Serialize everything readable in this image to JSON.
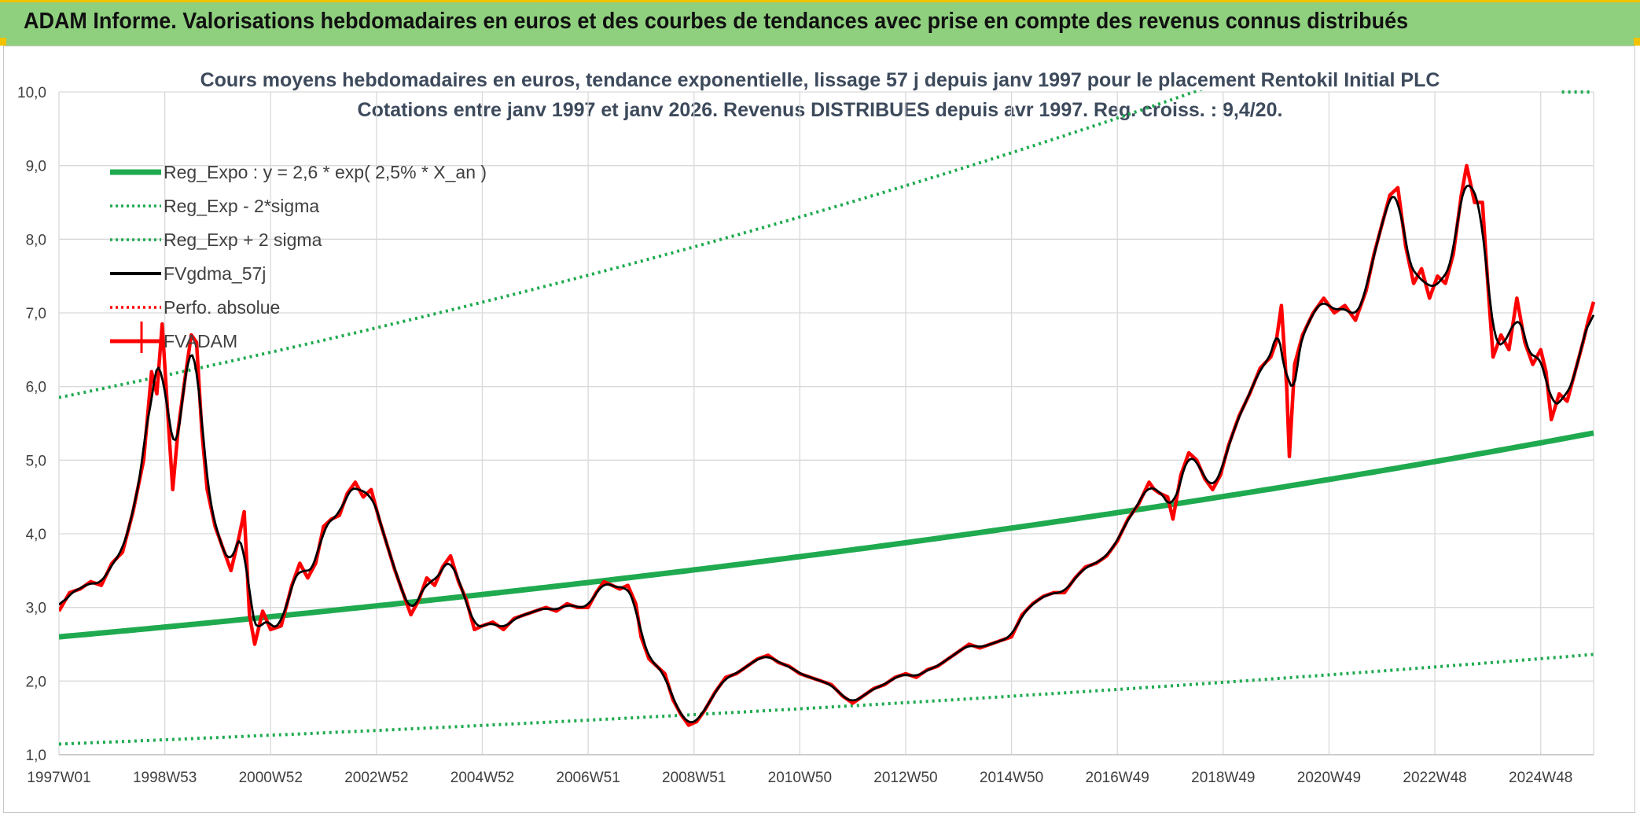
{
  "banner": {
    "title": "ADAM Informe. Valorisations hebdomadaires en euros et des courbes de tendances avec prise en compte des revenus connus distribués"
  },
  "chart_data": {
    "type": "line",
    "title": "Cours moyens hebdomadaires en euros, tendance exponentielle, lissage 57 j depuis janv 1997 pour le placement Rentokil Initial PLC",
    "subtitle": "Cotations entre janv 1997 et janv 2026. Revenus DISTRIBUES depuis avr 1997. Reg. croiss. : 9,4/20.",
    "xlabel": "",
    "ylabel": "",
    "ylim": [
      1.0,
      10.0
    ],
    "y_ticks": [
      "1,0",
      "2,0",
      "3,0",
      "4,0",
      "5,0",
      "6,0",
      "7,0",
      "8,0",
      "9,0",
      "10,0"
    ],
    "x_range": [
      1997.0,
      2026.0
    ],
    "x_ticks": [
      {
        "label": "1997W01",
        "year": 1997.0
      },
      {
        "label": "1998W53",
        "year": 1999.0
      },
      {
        "label": "2000W52",
        "year": 2001.0
      },
      {
        "label": "2002W52",
        "year": 2003.0
      },
      {
        "label": "2004W52",
        "year": 2005.0
      },
      {
        "label": "2006W51",
        "year": 2007.0
      },
      {
        "label": "2008W51",
        "year": 2009.0
      },
      {
        "label": "2010W50",
        "year": 2011.0
      },
      {
        "label": "2012W50",
        "year": 2013.0
      },
      {
        "label": "2014W50",
        "year": 2015.0
      },
      {
        "label": "2016W49",
        "year": 2017.0
      },
      {
        "label": "2018W49",
        "year": 2019.0
      },
      {
        "label": "2020W49",
        "year": 2021.0
      },
      {
        "label": "2022W48",
        "year": 2023.0
      },
      {
        "label": "2024W48",
        "year": 2025.0
      }
    ],
    "grid": true,
    "legend_position": "top-left",
    "regression": {
      "a": 2.6,
      "rate": 0.025,
      "base_year": 1997.0,
      "upper_factor": 2.25,
      "lower_factor": 0.44
    },
    "series": [
      {
        "name": "Reg_Expo : y = 2,6 * exp( 2,5% *  X_an )",
        "color": "#1faa50",
        "style": "solid-thick",
        "kind": "regression"
      },
      {
        "name": "Reg_Exp - 2*sigma",
        "color": "#1faa50",
        "style": "dotted",
        "kind": "lower"
      },
      {
        "name": "Reg_Exp + 2 sigma",
        "color": "#1faa50",
        "style": "dotted",
        "kind": "upper"
      },
      {
        "name": "FVgdma_57j",
        "color": "#000000",
        "style": "solid",
        "kind": "smooth"
      },
      {
        "name": "Perfo. absolue",
        "color": "#ff0000",
        "style": "dotted",
        "kind": "none"
      },
      {
        "name": "FVADAM",
        "color": "#ff0000",
        "style": "solid-thick",
        "kind": "price",
        "points": [
          [
            1997.0,
            2.95
          ],
          [
            1997.2,
            3.2
          ],
          [
            1997.4,
            3.25
          ],
          [
            1997.6,
            3.35
          ],
          [
            1997.8,
            3.3
          ],
          [
            1998.0,
            3.6
          ],
          [
            1998.2,
            3.75
          ],
          [
            1998.4,
            4.3
          ],
          [
            1998.6,
            5.0
          ],
          [
            1998.75,
            6.2
          ],
          [
            1998.85,
            5.9
          ],
          [
            1998.95,
            6.85
          ],
          [
            1999.05,
            5.7
          ],
          [
            1999.15,
            4.6
          ],
          [
            1999.25,
            5.4
          ],
          [
            1999.4,
            6.2
          ],
          [
            1999.5,
            6.7
          ],
          [
            1999.6,
            6.6
          ],
          [
            1999.7,
            5.4
          ],
          [
            1999.8,
            4.6
          ],
          [
            1999.95,
            4.1
          ],
          [
            2000.1,
            3.8
          ],
          [
            2000.25,
            3.5
          ],
          [
            2000.4,
            3.95
          ],
          [
            2000.5,
            4.3
          ],
          [
            2000.6,
            2.9
          ],
          [
            2000.7,
            2.5
          ],
          [
            2000.85,
            2.95
          ],
          [
            2001.0,
            2.7
          ],
          [
            2001.2,
            2.75
          ],
          [
            2001.4,
            3.3
          ],
          [
            2001.55,
            3.6
          ],
          [
            2001.7,
            3.4
          ],
          [
            2001.85,
            3.6
          ],
          [
            2002.0,
            4.1
          ],
          [
            2002.15,
            4.2
          ],
          [
            2002.3,
            4.25
          ],
          [
            2002.45,
            4.55
          ],
          [
            2002.6,
            4.7
          ],
          [
            2002.75,
            4.5
          ],
          [
            2002.9,
            4.6
          ],
          [
            2003.05,
            4.2
          ],
          [
            2003.2,
            3.85
          ],
          [
            2003.35,
            3.5
          ],
          [
            2003.5,
            3.2
          ],
          [
            2003.65,
            2.9
          ],
          [
            2003.8,
            3.1
          ],
          [
            2003.95,
            3.4
          ],
          [
            2004.1,
            3.3
          ],
          [
            2004.25,
            3.55
          ],
          [
            2004.4,
            3.7
          ],
          [
            2004.55,
            3.35
          ],
          [
            2004.7,
            3.1
          ],
          [
            2004.85,
            2.7
          ],
          [
            2005.0,
            2.75
          ],
          [
            2005.2,
            2.8
          ],
          [
            2005.4,
            2.7
          ],
          [
            2005.6,
            2.85
          ],
          [
            2005.8,
            2.9
          ],
          [
            2006.0,
            2.95
          ],
          [
            2006.2,
            3.0
          ],
          [
            2006.4,
            2.95
          ],
          [
            2006.6,
            3.05
          ],
          [
            2006.8,
            3.0
          ],
          [
            2007.0,
            3.0
          ],
          [
            2007.15,
            3.2
          ],
          [
            2007.3,
            3.35
          ],
          [
            2007.45,
            3.3
          ],
          [
            2007.6,
            3.25
          ],
          [
            2007.75,
            3.3
          ],
          [
            2007.9,
            3.05
          ],
          [
            2008.0,
            2.6
          ],
          [
            2008.15,
            2.3
          ],
          [
            2008.3,
            2.2
          ],
          [
            2008.45,
            2.1
          ],
          [
            2008.6,
            1.75
          ],
          [
            2008.75,
            1.55
          ],
          [
            2008.9,
            1.4
          ],
          [
            2009.05,
            1.45
          ],
          [
            2009.2,
            1.6
          ],
          [
            2009.4,
            1.85
          ],
          [
            2009.6,
            2.05
          ],
          [
            2009.8,
            2.1
          ],
          [
            2010.0,
            2.2
          ],
          [
            2010.2,
            2.3
          ],
          [
            2010.4,
            2.35
          ],
          [
            2010.6,
            2.25
          ],
          [
            2010.8,
            2.2
          ],
          [
            2011.0,
            2.1
          ],
          [
            2011.2,
            2.05
          ],
          [
            2011.4,
            2.0
          ],
          [
            2011.6,
            1.95
          ],
          [
            2011.8,
            1.8
          ],
          [
            2012.0,
            1.7
          ],
          [
            2012.2,
            1.8
          ],
          [
            2012.4,
            1.9
          ],
          [
            2012.6,
            1.95
          ],
          [
            2012.8,
            2.05
          ],
          [
            2013.0,
            2.1
          ],
          [
            2013.2,
            2.05
          ],
          [
            2013.4,
            2.15
          ],
          [
            2013.6,
            2.2
          ],
          [
            2013.8,
            2.3
          ],
          [
            2014.0,
            2.4
          ],
          [
            2014.2,
            2.5
          ],
          [
            2014.4,
            2.45
          ],
          [
            2014.6,
            2.5
          ],
          [
            2014.8,
            2.55
          ],
          [
            2015.0,
            2.6
          ],
          [
            2015.2,
            2.9
          ],
          [
            2015.4,
            3.05
          ],
          [
            2015.6,
            3.15
          ],
          [
            2015.8,
            3.2
          ],
          [
            2016.0,
            3.2
          ],
          [
            2016.2,
            3.4
          ],
          [
            2016.4,
            3.55
          ],
          [
            2016.6,
            3.6
          ],
          [
            2016.8,
            3.7
          ],
          [
            2017.0,
            3.9
          ],
          [
            2017.2,
            4.2
          ],
          [
            2017.4,
            4.4
          ],
          [
            2017.6,
            4.7
          ],
          [
            2017.7,
            4.6
          ],
          [
            2017.8,
            4.55
          ],
          [
            2017.95,
            4.5
          ],
          [
            2018.05,
            4.2
          ],
          [
            2018.2,
            4.8
          ],
          [
            2018.35,
            5.1
          ],
          [
            2018.5,
            5.0
          ],
          [
            2018.65,
            4.75
          ],
          [
            2018.8,
            4.6
          ],
          [
            2018.95,
            4.8
          ],
          [
            2019.1,
            5.2
          ],
          [
            2019.3,
            5.6
          ],
          [
            2019.5,
            5.9
          ],
          [
            2019.7,
            6.25
          ],
          [
            2019.9,
            6.4
          ],
          [
            2020.0,
            6.6
          ],
          [
            2020.1,
            7.1
          ],
          [
            2020.2,
            6.0
          ],
          [
            2020.25,
            5.05
          ],
          [
            2020.35,
            6.3
          ],
          [
            2020.5,
            6.7
          ],
          [
            2020.7,
            7.0
          ],
          [
            2020.9,
            7.2
          ],
          [
            2021.1,
            7.0
          ],
          [
            2021.3,
            7.1
          ],
          [
            2021.5,
            6.9
          ],
          [
            2021.7,
            7.3
          ],
          [
            2021.85,
            7.8
          ],
          [
            2022.0,
            8.2
          ],
          [
            2022.15,
            8.6
          ],
          [
            2022.3,
            8.7
          ],
          [
            2022.45,
            7.9
          ],
          [
            2022.6,
            7.4
          ],
          [
            2022.75,
            7.6
          ],
          [
            2022.9,
            7.2
          ],
          [
            2023.05,
            7.5
          ],
          [
            2023.2,
            7.4
          ],
          [
            2023.35,
            7.8
          ],
          [
            2023.5,
            8.6
          ],
          [
            2023.6,
            9.0
          ],
          [
            2023.75,
            8.5
          ],
          [
            2023.9,
            8.5
          ],
          [
            2024.0,
            7.4
          ],
          [
            2024.1,
            6.4
          ],
          [
            2024.25,
            6.7
          ],
          [
            2024.4,
            6.5
          ],
          [
            2024.55,
            7.2
          ],
          [
            2024.7,
            6.6
          ],
          [
            2024.85,
            6.3
          ],
          [
            2025.0,
            6.5
          ],
          [
            2025.1,
            6.2
          ],
          [
            2025.2,
            5.55
          ],
          [
            2025.35,
            5.9
          ],
          [
            2025.5,
            5.8
          ],
          [
            2025.65,
            6.2
          ],
          [
            2025.8,
            6.6
          ],
          [
            2025.9,
            6.9
          ],
          [
            2026.0,
            7.15
          ]
        ]
      }
    ]
  }
}
